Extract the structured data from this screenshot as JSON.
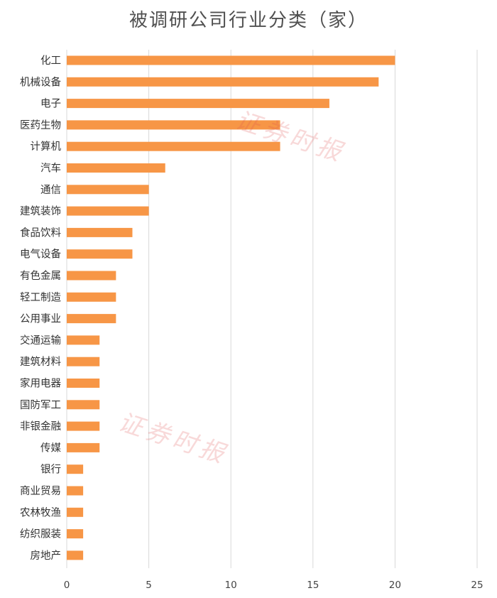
{
  "chart_data": {
    "type": "bar",
    "orientation": "horizontal",
    "title": "被调研公司行业分类（家）",
    "categories": [
      "化工",
      "机械设备",
      "电子",
      "医药生物",
      "计算机",
      "汽车",
      "通信",
      "建筑装饰",
      "食品饮料",
      "电气设备",
      "有色金属",
      "轻工制造",
      "公用事业",
      "交通运输",
      "建筑材料",
      "家用电器",
      "国防军工",
      "非银金融",
      "传媒",
      "银行",
      "商业贸易",
      "农林牧渔",
      "纺织服装",
      "房地产"
    ],
    "values": [
      20,
      19,
      16,
      13,
      13,
      6,
      5,
      5,
      4,
      4,
      3,
      3,
      3,
      2,
      2,
      2,
      2,
      2,
      2,
      1,
      1,
      1,
      1,
      1
    ],
    "xlim": [
      0,
      25
    ],
    "xticks": [
      0,
      5,
      10,
      15,
      20,
      25
    ],
    "grid": true,
    "bar_color": "#F79646"
  },
  "watermark": {
    "text": "证券时报"
  }
}
